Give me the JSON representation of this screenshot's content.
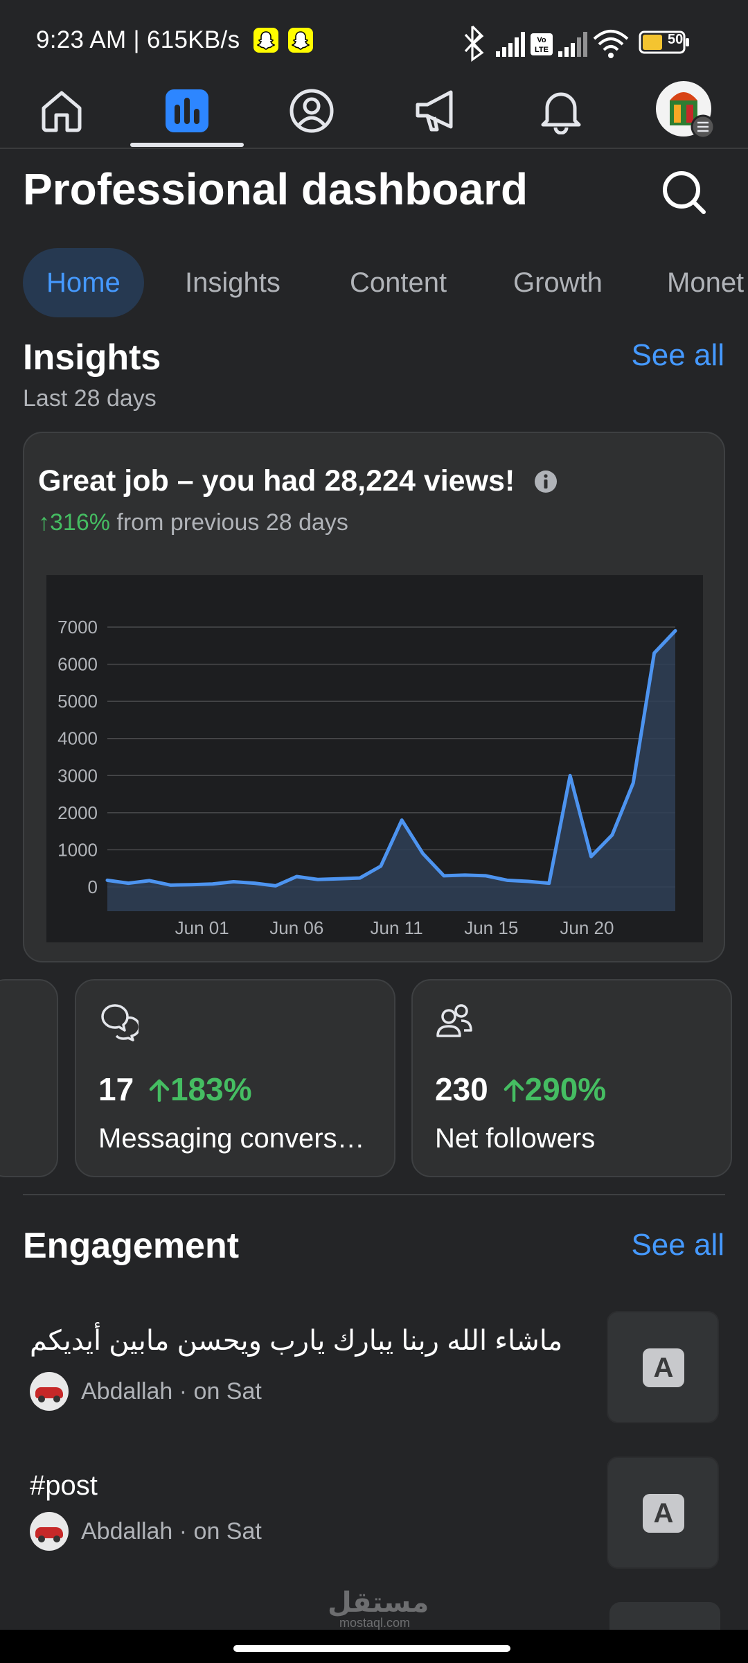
{
  "status_bar": {
    "time": "9:23 AM | 615KB/s",
    "battery": "50"
  },
  "nav": {
    "items": [
      {
        "name": "home"
      },
      {
        "name": "dashboard",
        "active": true
      },
      {
        "name": "profile"
      },
      {
        "name": "ads"
      },
      {
        "name": "notifications"
      },
      {
        "name": "account"
      }
    ]
  },
  "page": {
    "title": "Professional dashboard"
  },
  "tabs": [
    {
      "label": "Home",
      "active": true
    },
    {
      "label": "Insights"
    },
    {
      "label": "Content"
    },
    {
      "label": "Growth"
    },
    {
      "label": "Monet"
    }
  ],
  "insights": {
    "title": "Insights",
    "see_all": "See all",
    "period": "Last 28 days",
    "card_title": "Great job – you had 28,224 views!",
    "change_pct": "↑316%",
    "change_text": " from previous 28 days"
  },
  "chart_data": {
    "type": "area",
    "title": "",
    "xlabel": "",
    "ylabel": "",
    "ylim": [
      0,
      7000
    ],
    "yticks": [
      0,
      1000,
      2000,
      3000,
      4000,
      5000,
      6000,
      7000
    ],
    "xtick_labels": [
      "Jun 01",
      "Jun 06",
      "Jun 11",
      "Jun 15",
      "Jun 20"
    ],
    "xtick_index": [
      4.5,
      9,
      13.75,
      18.25,
      22.8
    ],
    "grid": true,
    "series": [
      {
        "values": [
          180,
          100,
          170,
          50,
          60,
          80,
          140,
          100,
          30,
          280,
          200,
          220,
          240,
          560,
          1800,
          900,
          300,
          320,
          300,
          180,
          150,
          100,
          3000,
          820,
          1400,
          2800,
          6300,
          6900
        ],
        "color": "#4d94f0"
      }
    ]
  },
  "metrics": [
    {
      "value": "17",
      "pct": "183%",
      "label": "Messaging conversations started",
      "icon": "chat-bubbles-icon"
    },
    {
      "value": "230",
      "pct": "290%",
      "label": "Net followers",
      "icon": "people-icon"
    }
  ],
  "engagement": {
    "title": "Engagement",
    "see_all": "See all",
    "items": [
      {
        "text": "ماشاء الله ربنا يبارك يارب ويحسن مابين أيديكم",
        "meta": "Abdallah · on Sat",
        "thumb": "A"
      },
      {
        "text": "#post",
        "meta": "Abdallah · on Sat",
        "thumb": "A"
      }
    ]
  },
  "watermark": {
    "ar": "مستقل",
    "en": "mostaql.com"
  }
}
